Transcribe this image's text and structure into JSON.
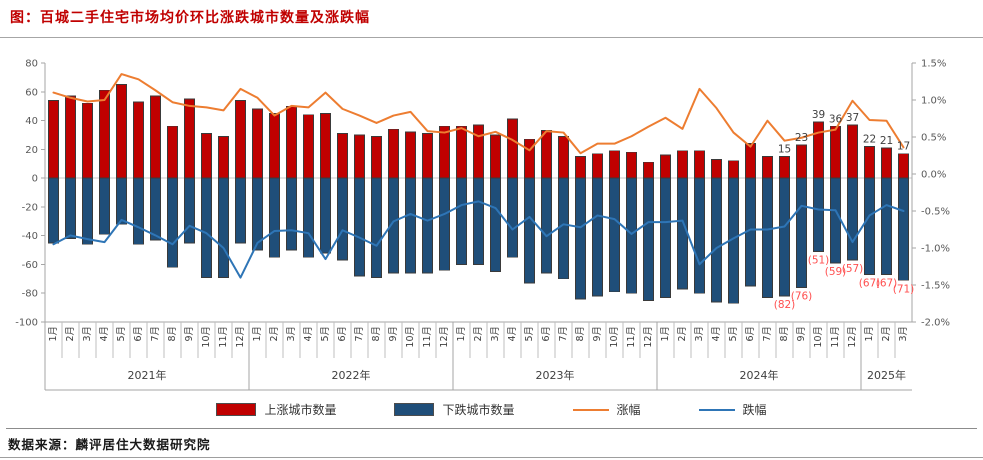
{
  "header": {
    "title": "图：百城二手住宅市场均价环比涨跌城市数量及涨跌幅"
  },
  "footer": {
    "source": "数据来源：麟评居住大数据研究院"
  },
  "legend": [
    {
      "label": "上涨城市数量",
      "type": "bar",
      "color": "#C00000"
    },
    {
      "label": "下跌城市数量",
      "type": "bar",
      "color": "#1F4E79"
    },
    {
      "label": "涨幅",
      "type": "line",
      "color": "#ED7D31"
    },
    {
      "label": "跌幅",
      "type": "line",
      "color": "#2E75B6"
    }
  ],
  "colors": {
    "up_bar": "#C00000",
    "down_bar": "#1F4E79",
    "up_line": "#ED7D31",
    "down_line": "#2E75B6",
    "title": "#C00000",
    "up_value_label": "#404040",
    "down_value_label": "#FF5050",
    "axis_text": "#595959",
    "axis_line": "#a6a6a6",
    "grid": "#c9c9c9"
  },
  "chart_data": {
    "type": "bar",
    "subtype": "combo bar + line, dual axis",
    "title": "图：百城二手住宅市场均价环比涨跌城市数量及涨跌幅",
    "x_months": [
      "1月",
      "2月",
      "3月",
      "4月",
      "5月",
      "6月",
      "7月",
      "8月",
      "9月",
      "10月",
      "11月",
      "12月",
      "1月",
      "2月",
      "3月",
      "4月",
      "5月",
      "6月",
      "7月",
      "8月",
      "9月",
      "10月",
      "11月",
      "12月",
      "1月",
      "2月",
      "3月",
      "4月",
      "5月",
      "6月",
      "7月",
      "8月",
      "9月",
      "10月",
      "11月",
      "12月",
      "1月",
      "2月",
      "3月",
      "4月",
      "5月",
      "6月",
      "7月",
      "8月",
      "9月",
      "10月",
      "11月",
      "12月",
      "1月",
      "2月",
      "3月"
    ],
    "year_groups": [
      {
        "label": "2021年",
        "months": 12
      },
      {
        "label": "2022年",
        "months": 12
      },
      {
        "label": "2023年",
        "months": 12
      },
      {
        "label": "2024年",
        "months": 12
      },
      {
        "label": "2025年",
        "months": 3
      }
    ],
    "left_axis": {
      "min": -100,
      "max": 80,
      "ticks": [
        {
          "value": 80,
          "label": "80"
        },
        {
          "value": 60,
          "label": "60"
        },
        {
          "value": 40,
          "label": "40"
        },
        {
          "value": 20,
          "label": "20"
        },
        {
          "value": 0,
          "label": "0"
        },
        {
          "value": -20,
          "label": "-20"
        },
        {
          "value": -40,
          "label": "-40"
        },
        {
          "value": -60,
          "label": "-60"
        },
        {
          "value": -80,
          "label": "-80"
        },
        {
          "value": -100,
          "label": "-100"
        }
      ]
    },
    "right_axis": {
      "min": -2.0,
      "max": 1.5,
      "ticks": [
        {
          "value": 1.5,
          "label": "1.5%"
        },
        {
          "value": 1.0,
          "label": "1.0%"
        },
        {
          "value": 0.5,
          "label": "0.5%"
        },
        {
          "value": 0.0,
          "label": "0.0%"
        },
        {
          "value": -0.5,
          "label": "-0.5%"
        },
        {
          "value": -1.0,
          "label": "-1.0%"
        },
        {
          "value": -1.5,
          "label": "-1.5%"
        },
        {
          "value": -2.0,
          "label": "-2.0%"
        }
      ]
    },
    "series": [
      {
        "name": "上涨城市数量",
        "type": "bar",
        "axis": "left",
        "color": "#C00000",
        "values": [
          54,
          57,
          52,
          61,
          65,
          53,
          57,
          36,
          55,
          31,
          29,
          54,
          48,
          45,
          50,
          44,
          45,
          31,
          30,
          29,
          34,
          32,
          31,
          36,
          36,
          37,
          30,
          41,
          27,
          33,
          29,
          15,
          17,
          19,
          18,
          11,
          16,
          19,
          19,
          13,
          12,
          24,
          15,
          15,
          23,
          39,
          36,
          37,
          22,
          21,
          17
        ]
      },
      {
        "name": "下跌城市数量",
        "type": "bar",
        "axis": "left",
        "color": "#1F4E79",
        "values": [
          -45,
          -42,
          -46,
          -39,
          -32,
          -46,
          -43,
          -62,
          -45,
          -69,
          -69,
          -45,
          -50,
          -55,
          -50,
          -55,
          -52,
          -57,
          -68,
          -69,
          -66,
          -66,
          -66,
          -64,
          -60,
          -60,
          -65,
          -55,
          -73,
          -66,
          -70,
          -84,
          -82,
          -79,
          -80,
          -85,
          -83,
          -77,
          -80,
          -86,
          -87,
          -75,
          -83,
          -82,
          -76,
          -51,
          -59,
          -57,
          -67,
          -67,
          -71
        ]
      },
      {
        "name": "涨幅",
        "type": "line",
        "axis": "right",
        "color": "#ED7D31",
        "values": [
          1.1,
          1.03,
          0.98,
          1.0,
          1.35,
          1.28,
          1.13,
          0.97,
          0.92,
          0.9,
          0.86,
          1.15,
          1.03,
          0.79,
          0.92,
          0.9,
          1.1,
          0.88,
          0.79,
          0.69,
          0.79,
          0.84,
          0.58,
          0.56,
          0.62,
          0.51,
          0.57,
          0.46,
          0.32,
          0.58,
          0.56,
          0.28,
          0.41,
          0.41,
          0.51,
          0.64,
          0.76,
          0.61,
          1.15,
          0.89,
          0.56,
          0.37,
          0.72,
          0.45,
          0.49,
          0.56,
          0.6,
          0.99,
          0.73,
          0.72,
          0.36
        ]
      },
      {
        "name": "跌幅",
        "type": "line",
        "axis": "right",
        "color": "#2E75B6",
        "values": [
          -0.95,
          -0.83,
          -0.88,
          -0.92,
          -0.62,
          -0.72,
          -0.83,
          -0.95,
          -0.7,
          -0.8,
          -1.0,
          -1.4,
          -0.93,
          -0.77,
          -0.76,
          -0.8,
          -1.15,
          -0.76,
          -0.86,
          -0.97,
          -0.64,
          -0.54,
          -0.63,
          -0.54,
          -0.42,
          -0.37,
          -0.46,
          -0.75,
          -0.58,
          -0.84,
          -0.68,
          -0.72,
          -0.56,
          -0.61,
          -0.81,
          -0.65,
          -0.65,
          -0.63,
          -1.22,
          -1.0,
          -0.87,
          -0.75,
          -0.75,
          -0.71,
          -0.43,
          -0.48,
          -0.49,
          -0.92,
          -0.56,
          -0.42,
          -0.5
        ]
      }
    ],
    "bar_value_labels": {
      "up": {
        "43": "15",
        "44": "23",
        "45": "39",
        "46": "36",
        "47": "37",
        "48": "22",
        "49": "21",
        "50": "17"
      },
      "down": {
        "43": "(82)",
        "44": "(76)",
        "45": "(51)",
        "46": "(59)",
        "47": "(57)",
        "48": "(67)",
        "49": "(67)",
        "50": "(71)"
      }
    },
    "legend_position": "bottom",
    "grid": "off"
  }
}
